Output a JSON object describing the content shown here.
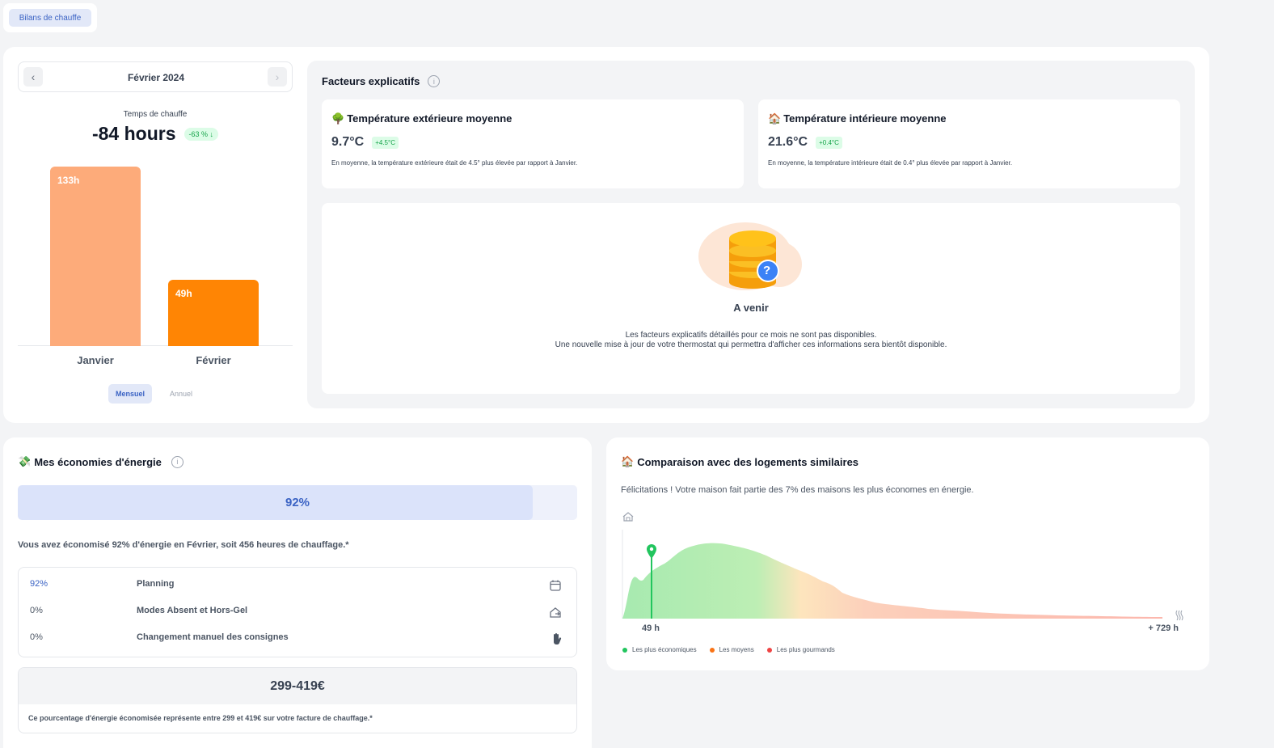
{
  "tab": {
    "label": "Bilans de chauffe"
  },
  "month_nav": {
    "label": "Février 2024",
    "prev": "‹",
    "next": "›"
  },
  "heating": {
    "title": "Temps de chauffe",
    "value": "-84 hours",
    "delta": "-63 % ↓",
    "bars": [
      {
        "label": "Janvier",
        "value_label": "133h",
        "value": 133,
        "color": "#fdab7a"
      },
      {
        "label": "Février",
        "value_label": "49h",
        "value": 49,
        "color": "#ff8504"
      }
    ],
    "segments": {
      "monthly": "Mensuel",
      "yearly": "Annuel"
    }
  },
  "factors": {
    "title": "Facteurs explicatifs",
    "exterior": {
      "emoji": "🌳",
      "title": "Température extérieure moyenne",
      "value": "9.7°C",
      "delta": "+4.5°C",
      "text": "En moyenne, la température extérieure était de 4.5° plus élevée par rapport à Janvier."
    },
    "interior": {
      "emoji": "🏠",
      "title": "Température intérieure moyenne",
      "value": "21.6°C",
      "delta": "+0.4°C",
      "text": "En moyenne, la température intérieure était de 0.4° plus élevée par rapport à Janvier."
    },
    "coming": {
      "title": "A venir",
      "line1": "Les facteurs explicatifs détaillés pour ce mois ne sont pas disponibles.",
      "line2": "Une nouvelle mise à jour de votre thermostat qui permettra d'afficher ces informations sera bientôt disponible.",
      "badge": "?"
    }
  },
  "savings": {
    "emoji": "💸",
    "title": "Mes économies d'énergie",
    "progress_label": "92%",
    "progress": 0.92,
    "summary": "Vous avez économisé 92% d'énergie en Février, soit 456 heures de chauffage.*",
    "rows": [
      {
        "pct": "92%",
        "label": "Planning",
        "icon": "calendar-icon"
      },
      {
        "pct": "0%",
        "label": "Modes Absent et Hors-Gel",
        "icon": "away-mode-icon"
      },
      {
        "pct": "0%",
        "label": "Changement manuel des consignes",
        "icon": "hand-icon"
      }
    ],
    "amount": "299-419€",
    "footnote": "Ce pourcentage d'énergie économisée représente entre 299 et 419€ sur votre facture de chauffage.*"
  },
  "comparison": {
    "emoji": "🏠",
    "title": "Comparaison avec des logements similaires",
    "subtitle": "Félicitations ! Votre maison fait partie des 7% des maisons les plus économes en énergie.",
    "min_label": "49 h",
    "max_label": "+ 729 h",
    "legend": [
      {
        "label": "Les plus économiques",
        "color": "#22c55e"
      },
      {
        "label": "Les moyens",
        "color": "#f97316"
      },
      {
        "label": "Les plus gourmands",
        "color": "#ef4444"
      }
    ]
  },
  "chart_data": {
    "type": "bar",
    "categories": [
      "Janvier",
      "Février"
    ],
    "values": [
      133,
      49
    ],
    "title": "Temps de chauffe",
    "xlabel": "",
    "ylabel": ""
  }
}
